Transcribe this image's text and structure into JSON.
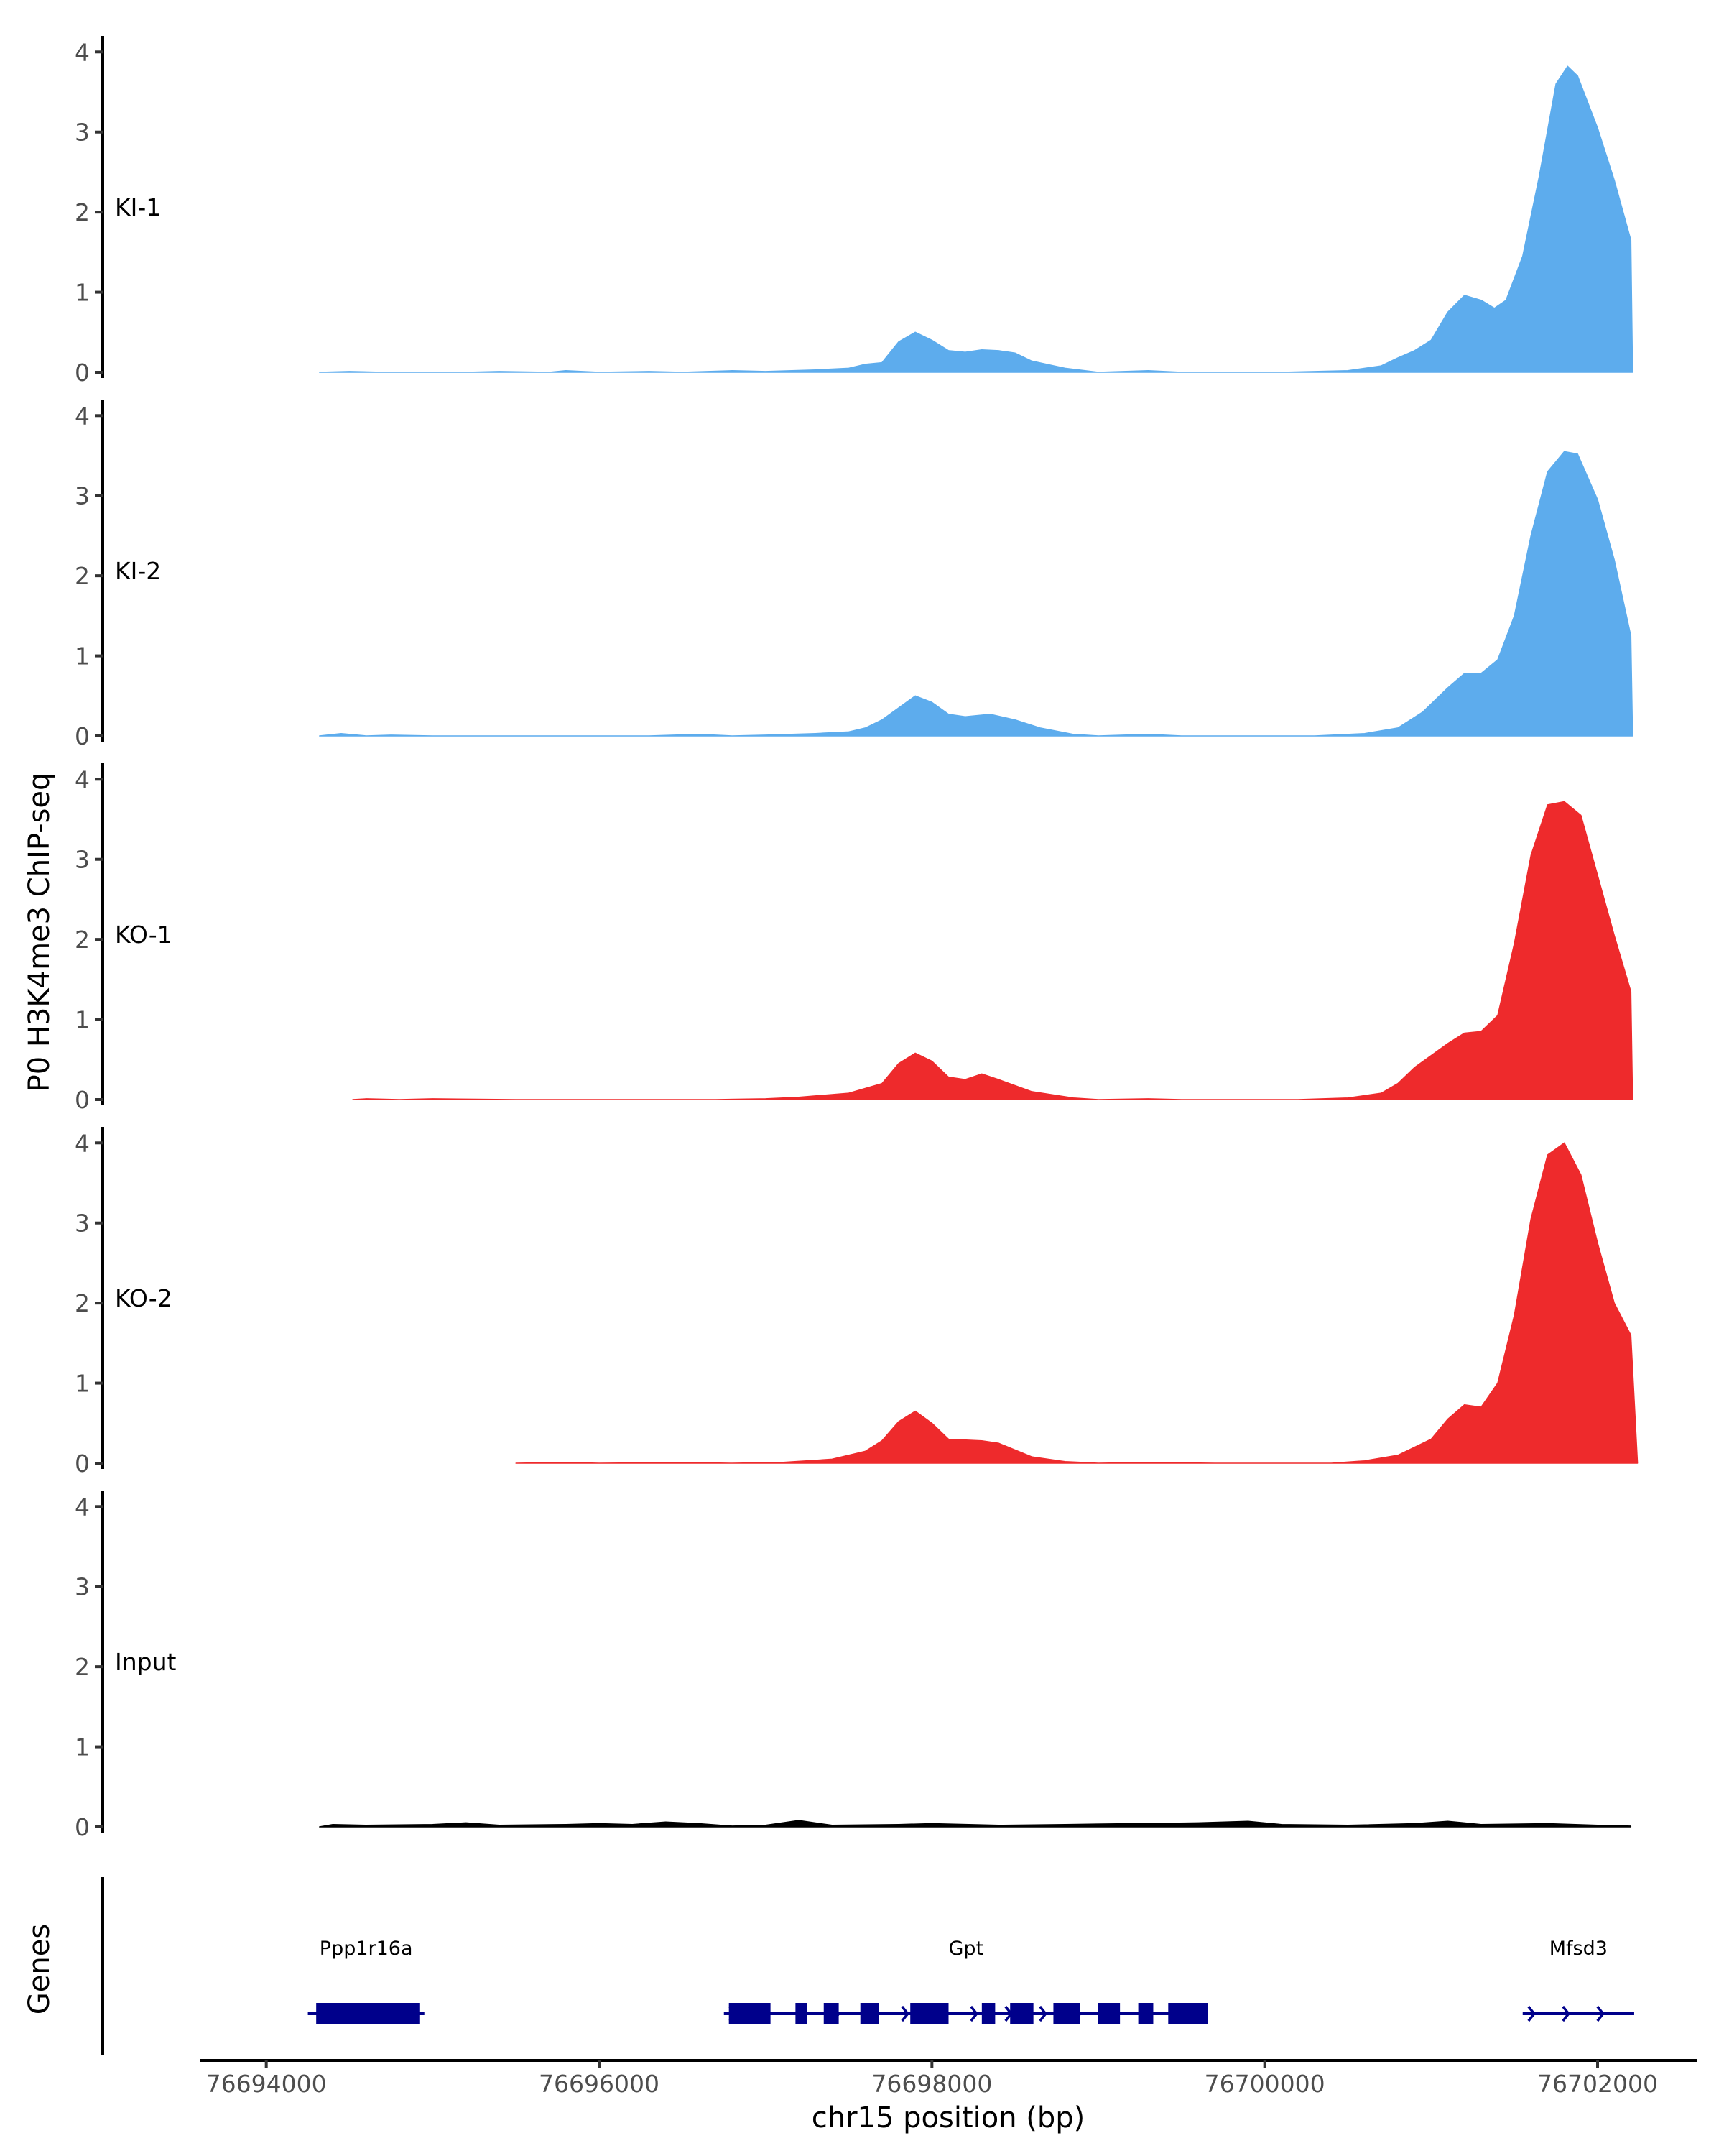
{
  "chart_data": {
    "type": "area",
    "chromosome": "chr15",
    "xlabel": "chr15 position (bp)",
    "ylabel": "P0 H3K4me3 ChIP-seq",
    "genes_label": "Genes",
    "xlim": [
      76693600,
      76702600
    ],
    "x_ticks": [
      76694000,
      76696000,
      76698000,
      76700000,
      76702000
    ],
    "x_tick_labels": [
      "76694000",
      "76696000",
      "76698000",
      "76700000",
      "76702000"
    ],
    "ylim": [
      0,
      4.2
    ],
    "y_ticks": [
      0,
      1,
      2,
      3,
      4
    ],
    "y_tick_labels": [
      "0",
      "1",
      "2",
      "3",
      "4"
    ],
    "grid": false,
    "legend": "none",
    "series": [
      {
        "name": "KI-1",
        "color": "#5daced",
        "points": [
          [
            76694320,
            0.0
          ],
          [
            76694500,
            0.01
          ],
          [
            76694700,
            0.0
          ],
          [
            76695200,
            0.0
          ],
          [
            76695400,
            0.01
          ],
          [
            76695700,
            0.0
          ],
          [
            76695800,
            0.02
          ],
          [
            76696000,
            0.0
          ],
          [
            76696300,
            0.01
          ],
          [
            76696500,
            0.0
          ],
          [
            76696800,
            0.02
          ],
          [
            76697000,
            0.01
          ],
          [
            76697300,
            0.03
          ],
          [
            76697500,
            0.05
          ],
          [
            76697600,
            0.1
          ],
          [
            76697700,
            0.12
          ],
          [
            76697800,
            0.38
          ],
          [
            76697900,
            0.5
          ],
          [
            76698000,
            0.4
          ],
          [
            76698100,
            0.27
          ],
          [
            76698200,
            0.25
          ],
          [
            76698300,
            0.28
          ],
          [
            76698400,
            0.27
          ],
          [
            76698500,
            0.24
          ],
          [
            76698600,
            0.14
          ],
          [
            76698800,
            0.05
          ],
          [
            76699000,
            0.0
          ],
          [
            76699300,
            0.02
          ],
          [
            76699500,
            0.0
          ],
          [
            76700100,
            0.0
          ],
          [
            76700300,
            0.01
          ],
          [
            76700500,
            0.02
          ],
          [
            76700700,
            0.08
          ],
          [
            76700800,
            0.18
          ],
          [
            76700900,
            0.27
          ],
          [
            76701000,
            0.4
          ],
          [
            76701100,
            0.75
          ],
          [
            76701200,
            0.96
          ],
          [
            76701300,
            0.9
          ],
          [
            76701380,
            0.8
          ],
          [
            76701450,
            0.9
          ],
          [
            76701550,
            1.45
          ],
          [
            76701650,
            2.45
          ],
          [
            76701750,
            3.6
          ],
          [
            76701820,
            3.82
          ],
          [
            76701880,
            3.7
          ],
          [
            76702000,
            3.05
          ],
          [
            76702100,
            2.4
          ],
          [
            76702200,
            1.65
          ],
          [
            76702210,
            0.0
          ]
        ]
      },
      {
        "name": "KI-2",
        "color": "#5daced",
        "points": [
          [
            76694320,
            0.0
          ],
          [
            76694450,
            0.03
          ],
          [
            76694600,
            0.0
          ],
          [
            76694750,
            0.01
          ],
          [
            76695000,
            0.0
          ],
          [
            76696300,
            0.0
          ],
          [
            76696600,
            0.02
          ],
          [
            76696800,
            0.0
          ],
          [
            76697000,
            0.01
          ],
          [
            76697300,
            0.03
          ],
          [
            76697500,
            0.05
          ],
          [
            76697600,
            0.1
          ],
          [
            76697700,
            0.2
          ],
          [
            76697800,
            0.35
          ],
          [
            76697900,
            0.5
          ],
          [
            76698000,
            0.42
          ],
          [
            76698100,
            0.27
          ],
          [
            76698200,
            0.24
          ],
          [
            76698350,
            0.27
          ],
          [
            76698500,
            0.2
          ],
          [
            76698650,
            0.1
          ],
          [
            76698850,
            0.02
          ],
          [
            76699000,
            0.0
          ],
          [
            76699300,
            0.02
          ],
          [
            76699500,
            0.0
          ],
          [
            76700300,
            0.0
          ],
          [
            76700600,
            0.03
          ],
          [
            76700800,
            0.1
          ],
          [
            76700950,
            0.3
          ],
          [
            76701100,
            0.6
          ],
          [
            76701200,
            0.78
          ],
          [
            76701300,
            0.78
          ],
          [
            76701400,
            0.95
          ],
          [
            76701500,
            1.5
          ],
          [
            76701600,
            2.5
          ],
          [
            76701700,
            3.3
          ],
          [
            76701800,
            3.55
          ],
          [
            76701880,
            3.52
          ],
          [
            76702000,
            2.95
          ],
          [
            76702100,
            2.2
          ],
          [
            76702200,
            1.25
          ],
          [
            76702210,
            0.0
          ]
        ]
      },
      {
        "name": "KO-1",
        "color": "#ee2a2c",
        "points": [
          [
            76694520,
            0.0
          ],
          [
            76694600,
            0.01
          ],
          [
            76694800,
            0.0
          ],
          [
            76695000,
            0.01
          ],
          [
            76695500,
            0.0
          ],
          [
            76696700,
            0.0
          ],
          [
            76697000,
            0.01
          ],
          [
            76697200,
            0.03
          ],
          [
            76697500,
            0.08
          ],
          [
            76697700,
            0.2
          ],
          [
            76697800,
            0.45
          ],
          [
            76697900,
            0.58
          ],
          [
            76698000,
            0.48
          ],
          [
            76698100,
            0.28
          ],
          [
            76698200,
            0.25
          ],
          [
            76698300,
            0.32
          ],
          [
            76698400,
            0.25
          ],
          [
            76698600,
            0.1
          ],
          [
            76698850,
            0.02
          ],
          [
            76699000,
            0.0
          ],
          [
            76699300,
            0.01
          ],
          [
            76699500,
            0.0
          ],
          [
            76700200,
            0.0
          ],
          [
            76700500,
            0.02
          ],
          [
            76700700,
            0.08
          ],
          [
            76700800,
            0.2
          ],
          [
            76700900,
            0.4
          ],
          [
            76701000,
            0.55
          ],
          [
            76701100,
            0.7
          ],
          [
            76701200,
            0.83
          ],
          [
            76701300,
            0.85
          ],
          [
            76701400,
            1.05
          ],
          [
            76701500,
            1.95
          ],
          [
            76701600,
            3.05
          ],
          [
            76701700,
            3.68
          ],
          [
            76701800,
            3.72
          ],
          [
            76701900,
            3.55
          ],
          [
            76702000,
            2.8
          ],
          [
            76702100,
            2.05
          ],
          [
            76702200,
            1.35
          ],
          [
            76702210,
            0.0
          ]
        ]
      },
      {
        "name": "KO-2",
        "color": "#ee2a2c",
        "points": [
          [
            76695500,
            0.0
          ],
          [
            76695800,
            0.01
          ],
          [
            76696000,
            0.0
          ],
          [
            76696500,
            0.01
          ],
          [
            76696800,
            0.0
          ],
          [
            76697100,
            0.01
          ],
          [
            76697400,
            0.05
          ],
          [
            76697600,
            0.15
          ],
          [
            76697700,
            0.28
          ],
          [
            76697800,
            0.52
          ],
          [
            76697900,
            0.65
          ],
          [
            76698000,
            0.5
          ],
          [
            76698100,
            0.3
          ],
          [
            76698300,
            0.28
          ],
          [
            76698400,
            0.25
          ],
          [
            76698600,
            0.08
          ],
          [
            76698800,
            0.02
          ],
          [
            76699000,
            0.0
          ],
          [
            76699300,
            0.01
          ],
          [
            76699700,
            0.0
          ],
          [
            76700400,
            0.0
          ],
          [
            76700600,
            0.03
          ],
          [
            76700800,
            0.1
          ],
          [
            76701000,
            0.3
          ],
          [
            76701100,
            0.55
          ],
          [
            76701200,
            0.73
          ],
          [
            76701300,
            0.7
          ],
          [
            76701400,
            1.0
          ],
          [
            76701500,
            1.85
          ],
          [
            76701600,
            3.05
          ],
          [
            76701700,
            3.85
          ],
          [
            76701800,
            4.0
          ],
          [
            76701900,
            3.6
          ],
          [
            76702000,
            2.75
          ],
          [
            76702100,
            2.0
          ],
          [
            76702200,
            1.6
          ],
          [
            76702240,
            0.0
          ]
        ]
      },
      {
        "name": "Input",
        "color": "#000000",
        "points": [
          [
            76694320,
            0.0
          ],
          [
            76694400,
            0.03
          ],
          [
            76694600,
            0.02
          ],
          [
            76695000,
            0.03
          ],
          [
            76695200,
            0.05
          ],
          [
            76695400,
            0.02
          ],
          [
            76695800,
            0.03
          ],
          [
            76696000,
            0.04
          ],
          [
            76696200,
            0.03
          ],
          [
            76696400,
            0.06
          ],
          [
            76696600,
            0.04
          ],
          [
            76696800,
            0.01
          ],
          [
            76697000,
            0.02
          ],
          [
            76697200,
            0.08
          ],
          [
            76697400,
            0.02
          ],
          [
            76697800,
            0.03
          ],
          [
            76698000,
            0.04
          ],
          [
            76698400,
            0.02
          ],
          [
            76698800,
            0.03
          ],
          [
            76699200,
            0.04
          ],
          [
            76699600,
            0.05
          ],
          [
            76699900,
            0.07
          ],
          [
            76700100,
            0.03
          ],
          [
            76700500,
            0.02
          ],
          [
            76700900,
            0.04
          ],
          [
            76701100,
            0.07
          ],
          [
            76701300,
            0.03
          ],
          [
            76701700,
            0.04
          ],
          [
            76702000,
            0.02
          ],
          [
            76702200,
            0.01
          ]
        ]
      }
    ],
    "genes": [
      {
        "name": "Ppp1r16a",
        "start": 76694250,
        "end": 76694950,
        "strand": "-",
        "exons": [
          [
            76694300,
            76694920
          ]
        ]
      },
      {
        "name": "Gpt",
        "start": 76696750,
        "end": 76699660,
        "strand": "+",
        "exons": [
          [
            76696780,
            76697030
          ],
          [
            76697180,
            76697250
          ],
          [
            76697350,
            76697440
          ],
          [
            76697570,
            76697680
          ],
          [
            76697870,
            76698100
          ],
          [
            76698300,
            76698380
          ],
          [
            76698470,
            76698610
          ],
          [
            76698730,
            76698890
          ],
          [
            76699000,
            76699130
          ],
          [
            76699240,
            76699330
          ],
          [
            76699420,
            76699660
          ]
        ]
      },
      {
        "name": "Mfsd3",
        "start": 76701550,
        "end": 76702220,
        "strand": "+",
        "exons": []
      }
    ]
  }
}
